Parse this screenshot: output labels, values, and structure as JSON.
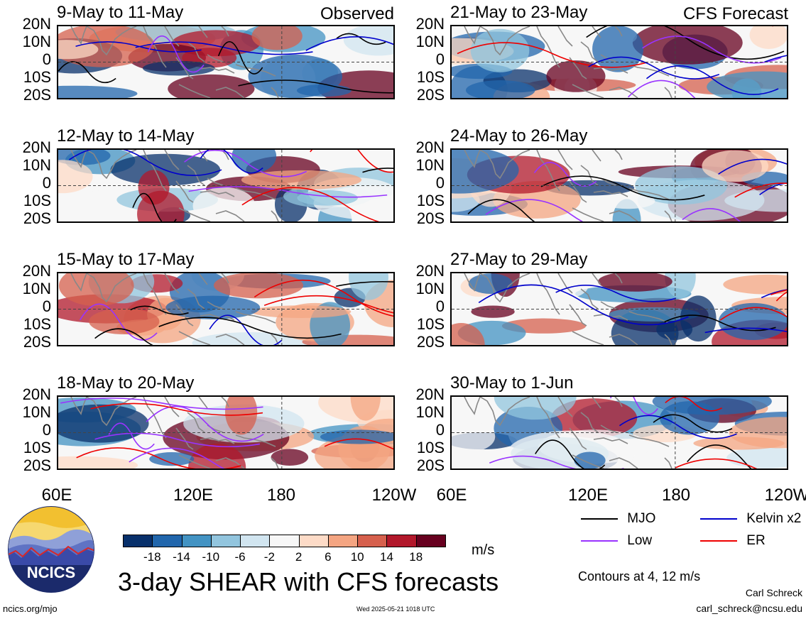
{
  "tags": {
    "observed": "Observed",
    "forecast": "CFS Forecast"
  },
  "panels_left": [
    {
      "title": "9-May to 11-May"
    },
    {
      "title": "12-May to 14-May"
    },
    {
      "title": "15-May to 17-May"
    },
    {
      "title": "18-May to 20-May"
    }
  ],
  "panels_right": [
    {
      "title": "21-May to 23-May"
    },
    {
      "title": "24-May to 26-May"
    },
    {
      "title": "27-May to 29-May"
    },
    {
      "title": "30-May to 1-Jun"
    }
  ],
  "lat_labels": [
    "20N",
    "10N",
    "0",
    "10S",
    "20S"
  ],
  "lon_labels": [
    "60E",
    "120E",
    "180",
    "120W"
  ],
  "colorbar": {
    "ticks": [
      "-18",
      "-14",
      "-10",
      "-6",
      "-2",
      "2",
      "6",
      "10",
      "14",
      "18"
    ],
    "unit": "m/s",
    "colors": [
      "#08306b",
      "#2166ac",
      "#4393c3",
      "#92c5de",
      "#d1e5f0",
      "#f7f7f7",
      "#fddbc7",
      "#f4a582",
      "#d6604d",
      "#b2182b",
      "#67001f"
    ]
  },
  "legend": {
    "mjo": {
      "label": "MJO",
      "color": "#000000"
    },
    "kelvin": {
      "label": "Kelvin x2",
      "color": "#0000cc"
    },
    "low": {
      "label": "Low",
      "color": "#9933ff"
    },
    "er": {
      "label": "ER",
      "color": "#ee0000"
    }
  },
  "contours_note": "Contours at 4, 12 m/s",
  "main_title": "3-day SHEAR with CFS forecasts",
  "logo_text": "NCICS",
  "footer": {
    "url": "ncics.org/mjo",
    "timestamp": "Wed 2025-05-21 1018 UTC",
    "author": "Carl Schreck",
    "email": "carl_schreck@ncsu.edu"
  }
}
